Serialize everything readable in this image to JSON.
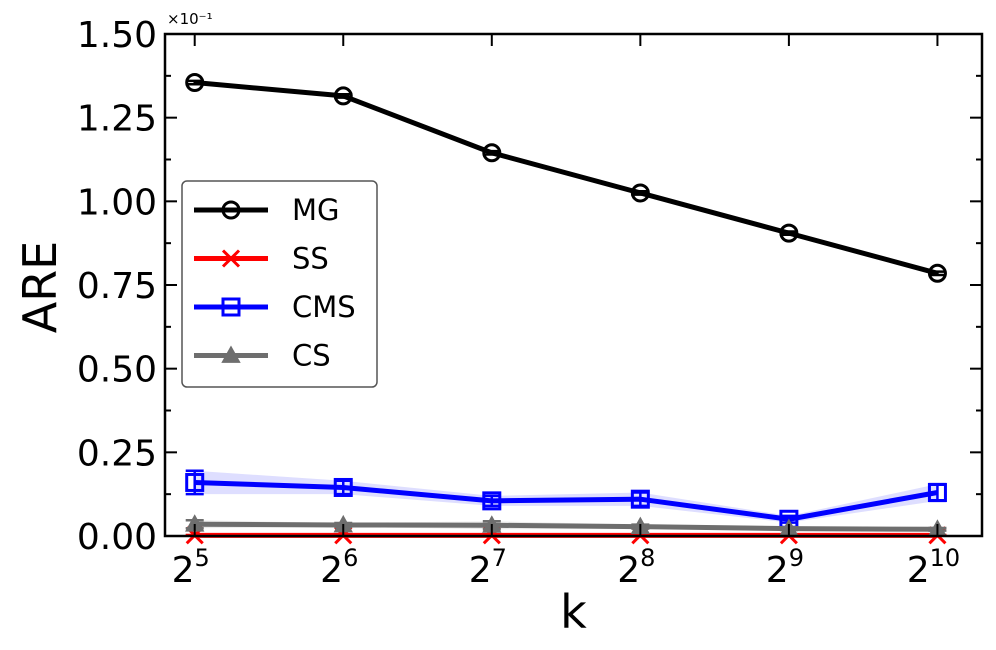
{
  "chart_data": {
    "type": "line",
    "xlabel": "k",
    "ylabel": "ARE",
    "y_offset_text": "×10⁻¹",
    "x_tick_base": "2",
    "x_tick_labels": [
      "5",
      "6",
      "7",
      "8",
      "9",
      "10"
    ],
    "x": [
      5,
      6,
      7,
      8,
      9,
      10
    ],
    "xlim": [
      4.8,
      10.3
    ],
    "ylim": [
      0,
      1.5
    ],
    "y_ticks": [
      "0.00",
      "0.25",
      "0.50",
      "0.75",
      "1.00",
      "1.25",
      "1.50"
    ],
    "grid": false,
    "legend_position": "center-left",
    "series": [
      {
        "name": "MG",
        "color": "#000000",
        "marker": "circle",
        "values": [
          1.355,
          1.315,
          1.145,
          1.025,
          0.905,
          0.785
        ],
        "errors": [
          0.005,
          0.005,
          0.005,
          0.005,
          0.005,
          0.005
        ]
      },
      {
        "name": "SS",
        "color": "#ff0000",
        "marker": "x",
        "values": [
          0.002,
          0.002,
          0.002,
          0.002,
          0.002,
          0.002
        ],
        "errors": [
          0.001,
          0.001,
          0.001,
          0.001,
          0.001,
          0.001
        ]
      },
      {
        "name": "CMS",
        "color": "#0000ff",
        "marker": "square",
        "values": [
          0.16,
          0.145,
          0.105,
          0.11,
          0.05,
          0.13
        ],
        "errors": [
          0.035,
          0.02,
          0.015,
          0.02,
          0.01,
          0.025
        ]
      },
      {
        "name": "CS",
        "color": "#6e6e6e",
        "marker": "triangle",
        "values": [
          0.035,
          0.033,
          0.032,
          0.028,
          0.022,
          0.02
        ],
        "errors": [
          0.012,
          0.006,
          0.012,
          0.006,
          0.004,
          0.004
        ]
      }
    ]
  }
}
